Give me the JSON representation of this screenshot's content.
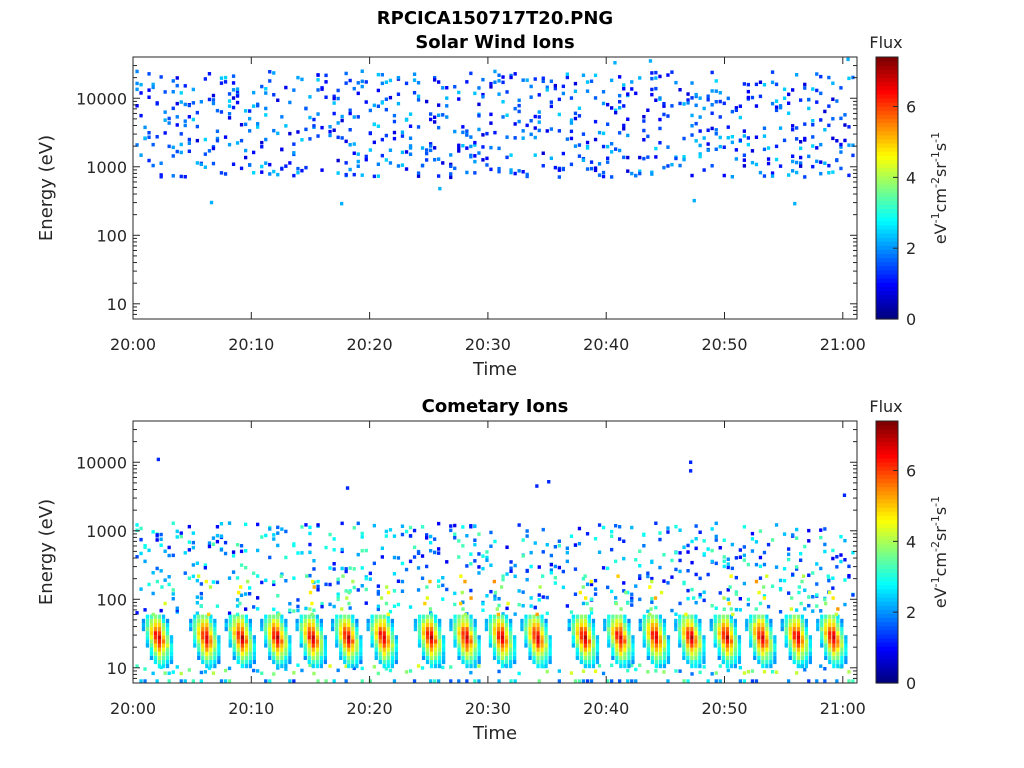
{
  "figure": {
    "title": "RPCICA150717T20.PNG"
  },
  "chart_data": [
    {
      "type": "heatmap",
      "title": "Solar Wind Ions",
      "xlabel": "Time",
      "ylabel": "Energy (eV)",
      "x_ticks": [
        "20:00",
        "20:10",
        "20:20",
        "20:30",
        "20:40",
        "20:50",
        "21:00"
      ],
      "y_ticks": [
        "10",
        "100",
        "1000",
        "10000"
      ],
      "y_scale": "log",
      "y_lim": [
        6,
        40000
      ],
      "colorbar": {
        "title": "Flux",
        "unit": "eV-1cm-2sr-1s-1",
        "ticks": [
          "0",
          "2",
          "4",
          "6"
        ],
        "range": [
          0,
          7.4
        ],
        "colormap": "jet"
      },
      "description_of_data": {
        "energy_band_eV": [
          700,
          25000
        ],
        "typical_flux": [
          0.5,
          2.5
        ],
        "sparse_outliers_eV": [
          300,
          35000
        ]
      }
    },
    {
      "type": "heatmap",
      "title": "Cometary Ions",
      "xlabel": "Time",
      "ylabel": "Energy (eV)",
      "x_ticks": [
        "20:00",
        "20:10",
        "20:20",
        "20:30",
        "20:40",
        "20:50",
        "21:00"
      ],
      "y_ticks": [
        "10",
        "100",
        "1000",
        "10000"
      ],
      "y_scale": "log",
      "y_lim": [
        6,
        40000
      ],
      "colorbar": {
        "title": "Flux",
        "unit": "eV-1cm-2sr-1s-1",
        "ticks": [
          "0",
          "2",
          "4",
          "6"
        ],
        "range": [
          0,
          7.4
        ],
        "colormap": "jet"
      },
      "bursts_minutes": [
        2,
        6,
        9,
        12,
        15,
        18,
        21,
        25,
        28,
        31,
        34,
        38,
        41,
        44,
        47,
        50,
        53,
        56,
        59
      ],
      "burst_energy_peak_eV": [
        15,
        40
      ],
      "burst_peak_flux": 7.2,
      "background_energy_band_eV": [
        60,
        1300
      ],
      "outliers": [
        {
          "minute": 2,
          "energy": 11000
        },
        {
          "minute": 18,
          "energy": 4200
        },
        {
          "minute": 34,
          "energy": 4500
        },
        {
          "minute": 35,
          "energy": 5200
        },
        {
          "minute": 47,
          "energy": 10000
        },
        {
          "minute": 47,
          "energy": 7500
        },
        {
          "minute": 60,
          "energy": 3300
        }
      ]
    }
  ]
}
